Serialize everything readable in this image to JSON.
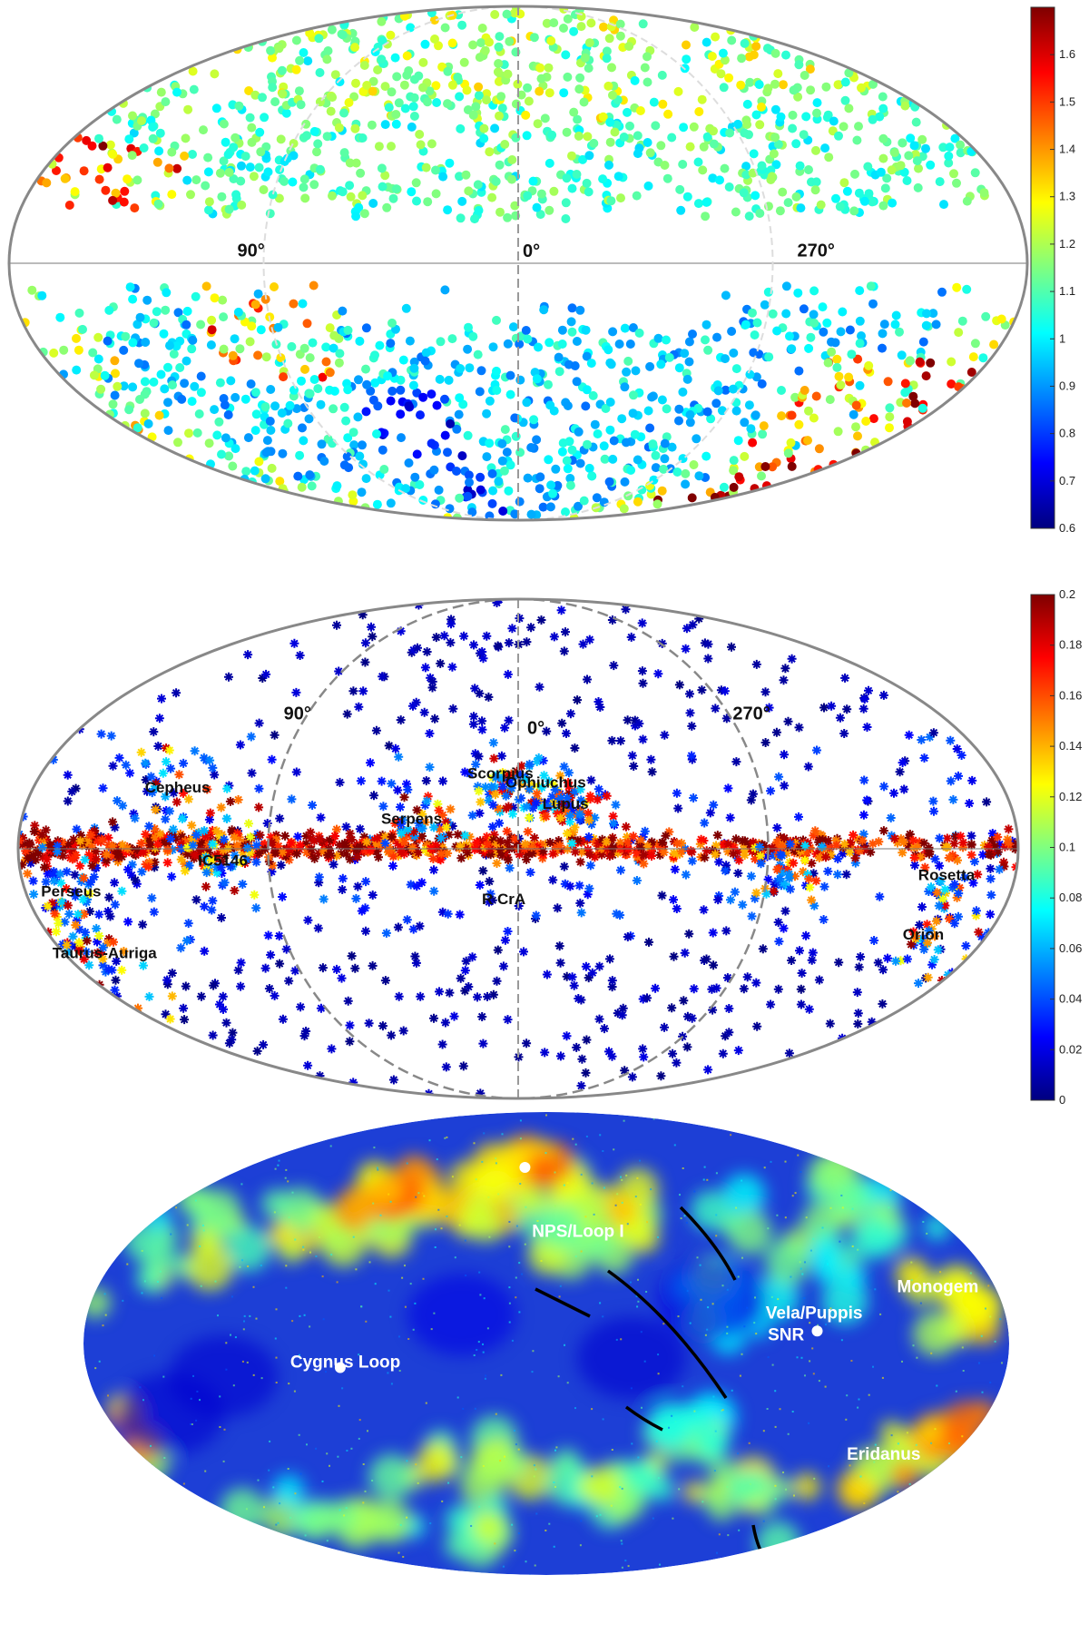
{
  "chart_data": [
    {
      "type": "scatter",
      "projection": "hammer-aitoff",
      "grid": true,
      "longitude_labels": [
        "90°",
        "0°",
        "270°"
      ],
      "colorbar": {
        "min": 0.6,
        "max": 1.7,
        "ticks": [
          "0.6",
          "0.7",
          "0.8",
          "0.9",
          "1",
          "1.1",
          "1.2",
          "1.3",
          "1.4",
          "1.5",
          "1.6"
        ],
        "tick_values": [
          0.6,
          0.7,
          0.8,
          0.9,
          1.0,
          1.1,
          1.2,
          1.3,
          1.4,
          1.5,
          1.6
        ],
        "colormap": "jet"
      },
      "annotations": []
    },
    {
      "type": "scatter",
      "projection": "hammer-aitoff",
      "grid": true,
      "longitude_labels": [
        "90°",
        "0°",
        "270°"
      ],
      "colorbar": {
        "min": 0,
        "max": 0.2,
        "ticks": [
          "0",
          "0.02",
          "0.04",
          "0.06",
          "0.08",
          "0.1",
          "0.12",
          "0.14",
          "0.16",
          "0.18",
          "0.2"
        ],
        "tick_values": [
          0,
          0.02,
          0.04,
          0.06,
          0.08,
          0.1,
          0.12,
          0.14,
          0.16,
          0.18,
          0.2
        ],
        "colormap": "jet"
      },
      "annotations": [
        {
          "text": "Cepheus",
          "l": 118,
          "b": 16
        },
        {
          "text": "Scorpius",
          "l": 5,
          "b": 23
        },
        {
          "text": "Ophiuchus",
          "l": 352,
          "b": 20
        },
        {
          "text": "Lupus",
          "l": 340,
          "b": 13
        },
        {
          "text": "Serpens",
          "l": 33,
          "b": 8
        },
        {
          "text": "IC5146",
          "l": 95,
          "b": -5
        },
        {
          "text": "Perseus",
          "l": 158,
          "b": -12
        },
        {
          "text": "R CrA",
          "l": 0,
          "b": -18
        },
        {
          "text": "Taurus-Auriga",
          "l": 171,
          "b": -27
        },
        {
          "text": "Rosetta",
          "l": 206,
          "b": -8
        },
        {
          "text": "Orion",
          "l": 200,
          "b": -23
        }
      ]
    },
    {
      "type": "heatmap",
      "projection": "hammer-aitoff",
      "colormap": "jet",
      "annotations": [
        {
          "text": "NPS/Loop I",
          "l": 345,
          "b": 38
        },
        {
          "text": "Vela/Puppis",
          "l": 262,
          "b": 8
        },
        {
          "text": "SNR",
          "l": 262,
          "b": 1
        },
        {
          "text": "Monogem",
          "l": 204,
          "b": 14
        },
        {
          "text": "Cygnus Loop",
          "l": 74,
          "b": -8
        },
        {
          "text": "Eridanus",
          "l": 204,
          "b": -33
        }
      ]
    }
  ]
}
